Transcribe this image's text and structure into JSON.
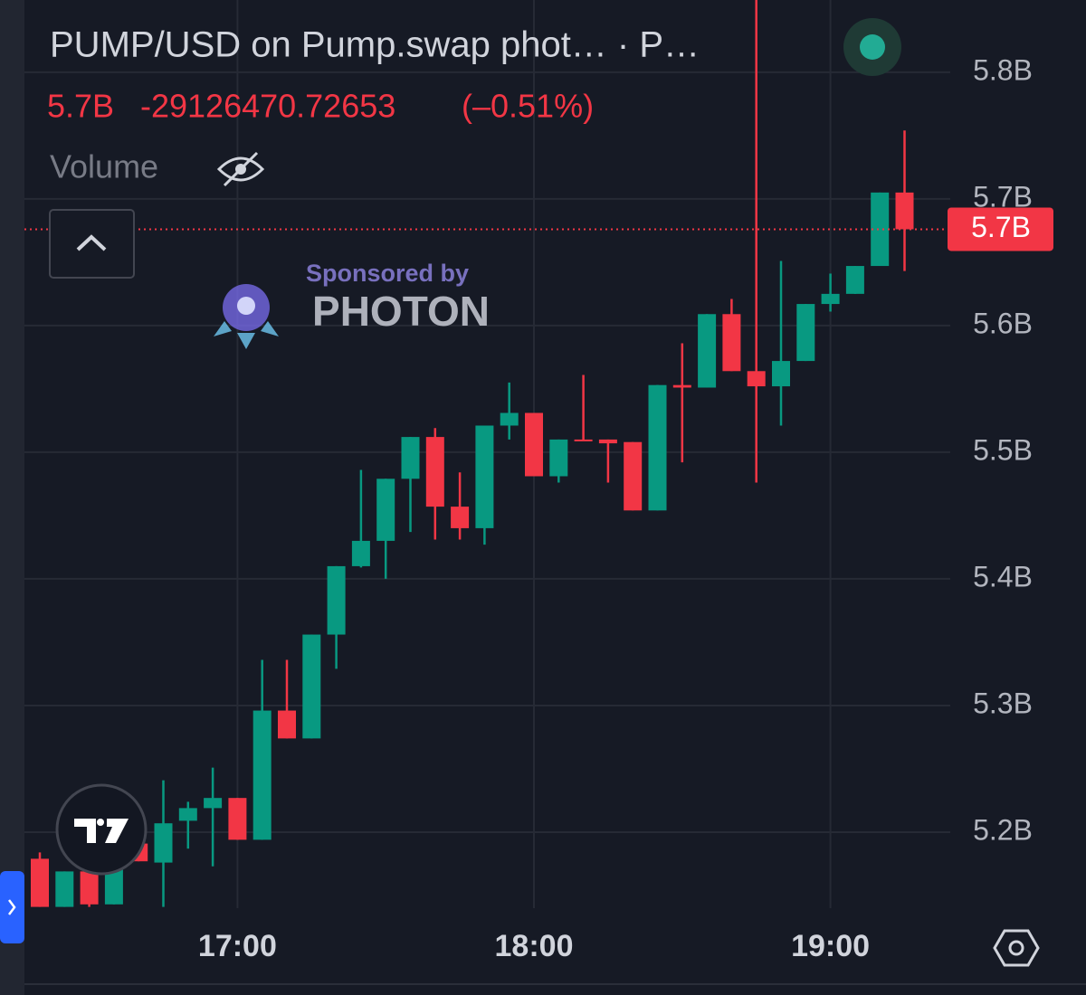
{
  "header": {
    "title": "PUMP/USD on Pump.swap phot… · P…",
    "price": "5.7B",
    "change": "-29126470.72653",
    "change_pct": "(–0.51%)",
    "indicator": "Volume"
  },
  "watermark": {
    "sponsor": "Sponsored by",
    "brand": "PHOTON"
  },
  "chart_data": {
    "type": "candlestick",
    "categories": [
      null,
      null,
      null,
      null,
      null,
      null,
      null,
      null,
      "17:00",
      null,
      null,
      null,
      null,
      null,
      null,
      null,
      null,
      null,
      null,
      null,
      "18:00",
      null,
      null,
      null,
      null,
      null,
      null,
      null,
      null,
      null,
      null,
      null,
      "19:00",
      null,
      null,
      null
    ],
    "open": [
      5179000000,
      5141000000,
      5169000000,
      5143000000,
      5191000000,
      5176000000,
      5209000000,
      5219000000,
      5227000000,
      5194000000,
      5296000000,
      5274000000,
      5356000000,
      5410000000,
      5430000000,
      5479000000,
      5512000000,
      5457000000,
      5440000000,
      5521000000,
      5531000000,
      5481000000,
      5510000000,
      5510000000,
      5508000000,
      5454000000,
      5553000000,
      5551000000,
      5609000000,
      5564000000,
      5552000000,
      5572000000,
      5617000000,
      5625000000,
      5647000000,
      5705000000
    ],
    "high": [
      5184000000,
      5169000000,
      5169000000,
      5171000000,
      5193000000,
      5241000000,
      5224000000,
      5251000000,
      5227000000,
      5336000000,
      5336000000,
      5356000000,
      5410000000,
      5486000000,
      5479000000,
      5512000000,
      5519000000,
      5484000000,
      5521000000,
      5555000000,
      5531000000,
      5510000000,
      5561000000,
      5510000000,
      5508000000,
      5553000000,
      5586000000,
      5609000000,
      5621000000,
      5857000000,
      5651000000,
      5617000000,
      5641000000,
      5647000000,
      5705000000,
      5754000000
    ],
    "low": [
      5141000000,
      5141000000,
      5141000000,
      5143000000,
      5177000000,
      5141000000,
      5187000000,
      5173000000,
      5194000000,
      5194000000,
      5274000000,
      5274000000,
      5329000000,
      5409000000,
      5400000000,
      5437000000,
      5431000000,
      5431000000,
      5427000000,
      5510000000,
      5481000000,
      5476000000,
      5509000000,
      5476000000,
      5454000000,
      5454000000,
      5492000000,
      5551000000,
      5564000000,
      5476000000,
      5521000000,
      5572000000,
      5611000000,
      5625000000,
      5647000000,
      5643000000
    ],
    "close": [
      5141000000,
      5169000000,
      5143000000,
      5171000000,
      5177000000,
      5207000000,
      5219000000,
      5227000000,
      5194000000,
      5296000000,
      5274000000,
      5356000000,
      5410000000,
      5430000000,
      5479000000,
      5512000000,
      5457000000,
      5440000000,
      5521000000,
      5531000000,
      5481000000,
      5510000000,
      5509000000,
      5507000000,
      5454000000,
      5553000000,
      5551000000,
      5609000000,
      5564000000,
      5552000000,
      5572000000,
      5617000000,
      5625000000,
      5647000000,
      5705000000,
      5676000000
    ],
    "up_color": "#089981",
    "down_color": "#f23645",
    "ylim": [
      5140000000,
      5857000000
    ],
    "yticks": [
      {
        "value": 5200000000,
        "label": "5.2B"
      },
      {
        "value": 5300000000,
        "label": "5.3B"
      },
      {
        "value": 5400000000,
        "label": "5.4B"
      },
      {
        "value": 5500000000,
        "label": "5.5B"
      },
      {
        "value": 5600000000,
        "label": "5.6B"
      },
      {
        "value": 5700000000,
        "label": "5.7B"
      },
      {
        "value": 5800000000,
        "label": "5.8B"
      }
    ],
    "current_price": {
      "value": 5676000000,
      "label": "5.7B"
    },
    "grid": true
  }
}
